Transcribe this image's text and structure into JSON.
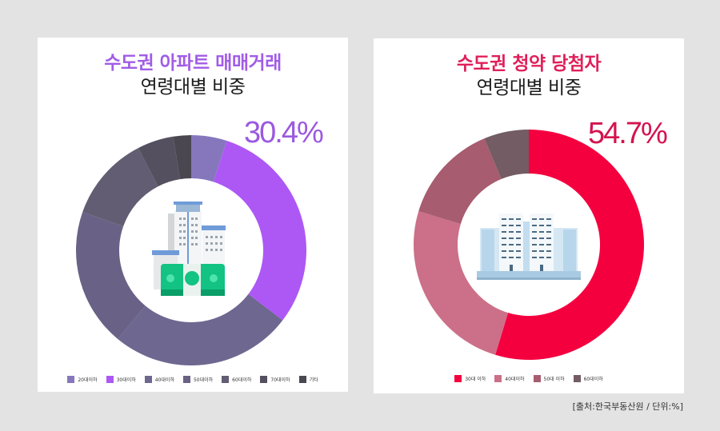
{
  "left": {
    "title_line1": "수도권 아파트 매매거래",
    "title_line2": "연령대별 비중",
    "title_color": "#a15ce6",
    "highlight_value": "30.4%",
    "highlight_color": "#9b59e0",
    "center_icon": "buildings-with-money-icon"
  },
  "right": {
    "title_line1": "수도권 청약 당첨자",
    "title_line2": "연령대별 비중",
    "title_color": "#e0205a",
    "highlight_value": "54.7%",
    "highlight_color": "#d4134f",
    "center_icon": "apartment-complex-icon"
  },
  "source": "[출처:한국부동산원 / 단위:%]",
  "chart_data": [
    {
      "type": "pie",
      "variant": "donut",
      "title": "수도권 아파트 매매거래 연령대별 비중",
      "categories": [
        "20대이하",
        "30대이하",
        "40대이하",
        "50대이하",
        "60대이하",
        "70대이하",
        "기타"
      ],
      "values": [
        5.0,
        30.4,
        25.6,
        19.4,
        12.0,
        5.1,
        2.5
      ],
      "colors": [
        "#8677bd",
        "#ad58f5",
        "#6e6790",
        "#696186",
        "#625d72",
        "#55505f",
        "#4a4750"
      ],
      "annotation": "30.4%",
      "legend_position": "bottom",
      "unit": "%"
    },
    {
      "type": "pie",
      "variant": "donut",
      "title": "수도권 청약 당첨자 연령대별 비중",
      "categories": [
        "30대 이하",
        "40대이하",
        "50대 이하",
        "60대이하"
      ],
      "values": [
        54.7,
        25.0,
        14.0,
        6.3
      ],
      "colors": [
        "#f4003f",
        "#cb7088",
        "#a75c70",
        "#735c64"
      ],
      "annotation": "54.7%",
      "legend_position": "bottom",
      "unit": "%"
    }
  ]
}
